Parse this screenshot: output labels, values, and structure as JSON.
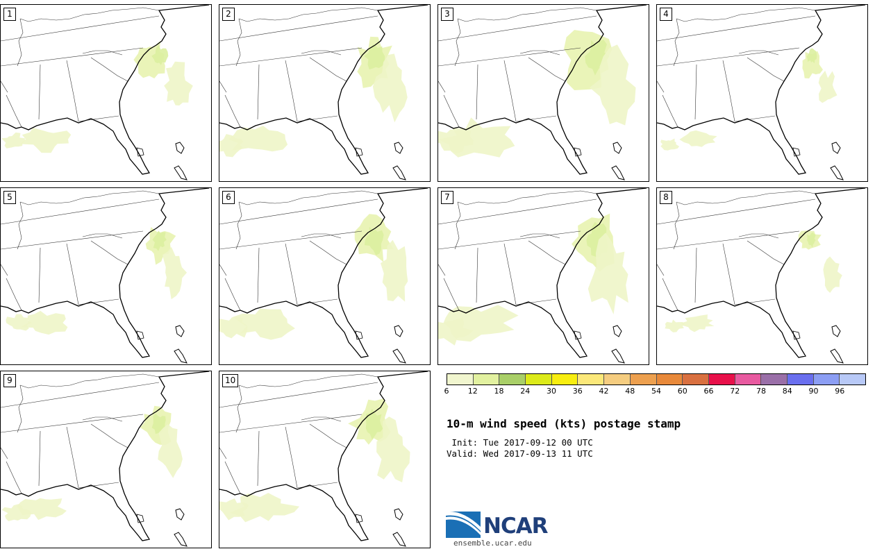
{
  "stamps": [
    {
      "label": "1",
      "variant": 1
    },
    {
      "label": "2",
      "variant": 2
    },
    {
      "label": "3",
      "variant": 3
    },
    {
      "label": "4",
      "variant": 4
    },
    {
      "label": "5",
      "variant": 5
    },
    {
      "label": "6",
      "variant": 6
    },
    {
      "label": "7",
      "variant": 7
    },
    {
      "label": "8",
      "variant": 8
    },
    {
      "label": "9",
      "variant": 9
    },
    {
      "label": "10",
      "variant": 10
    }
  ],
  "legend": {
    "colors": [
      "#f1f6cf",
      "#e2f1a0",
      "#a9cf68",
      "#dcea1a",
      "#f8ee10",
      "#fbe87a",
      "#f5cd80",
      "#eda04f",
      "#e8893a",
      "#d97040",
      "#e8104a",
      "#e85aa0",
      "#9a6fa8",
      "#6a6fef",
      "#8c9ef4",
      "#b8c9f7"
    ],
    "ticks": [
      "6",
      "12",
      "18",
      "24",
      "30",
      "36",
      "42",
      "48",
      "54",
      "60",
      "66",
      "72",
      "78",
      "84",
      "90",
      "96"
    ]
  },
  "title": "10-m wind speed (kts) postage stamp",
  "init": " Init: Tue 2017-09-12 00 UTC",
  "valid": "Valid: Wed 2017-09-13 11 UTC",
  "logo": {
    "name": "NCAR",
    "url": "ensemble.ucar.edu"
  }
}
